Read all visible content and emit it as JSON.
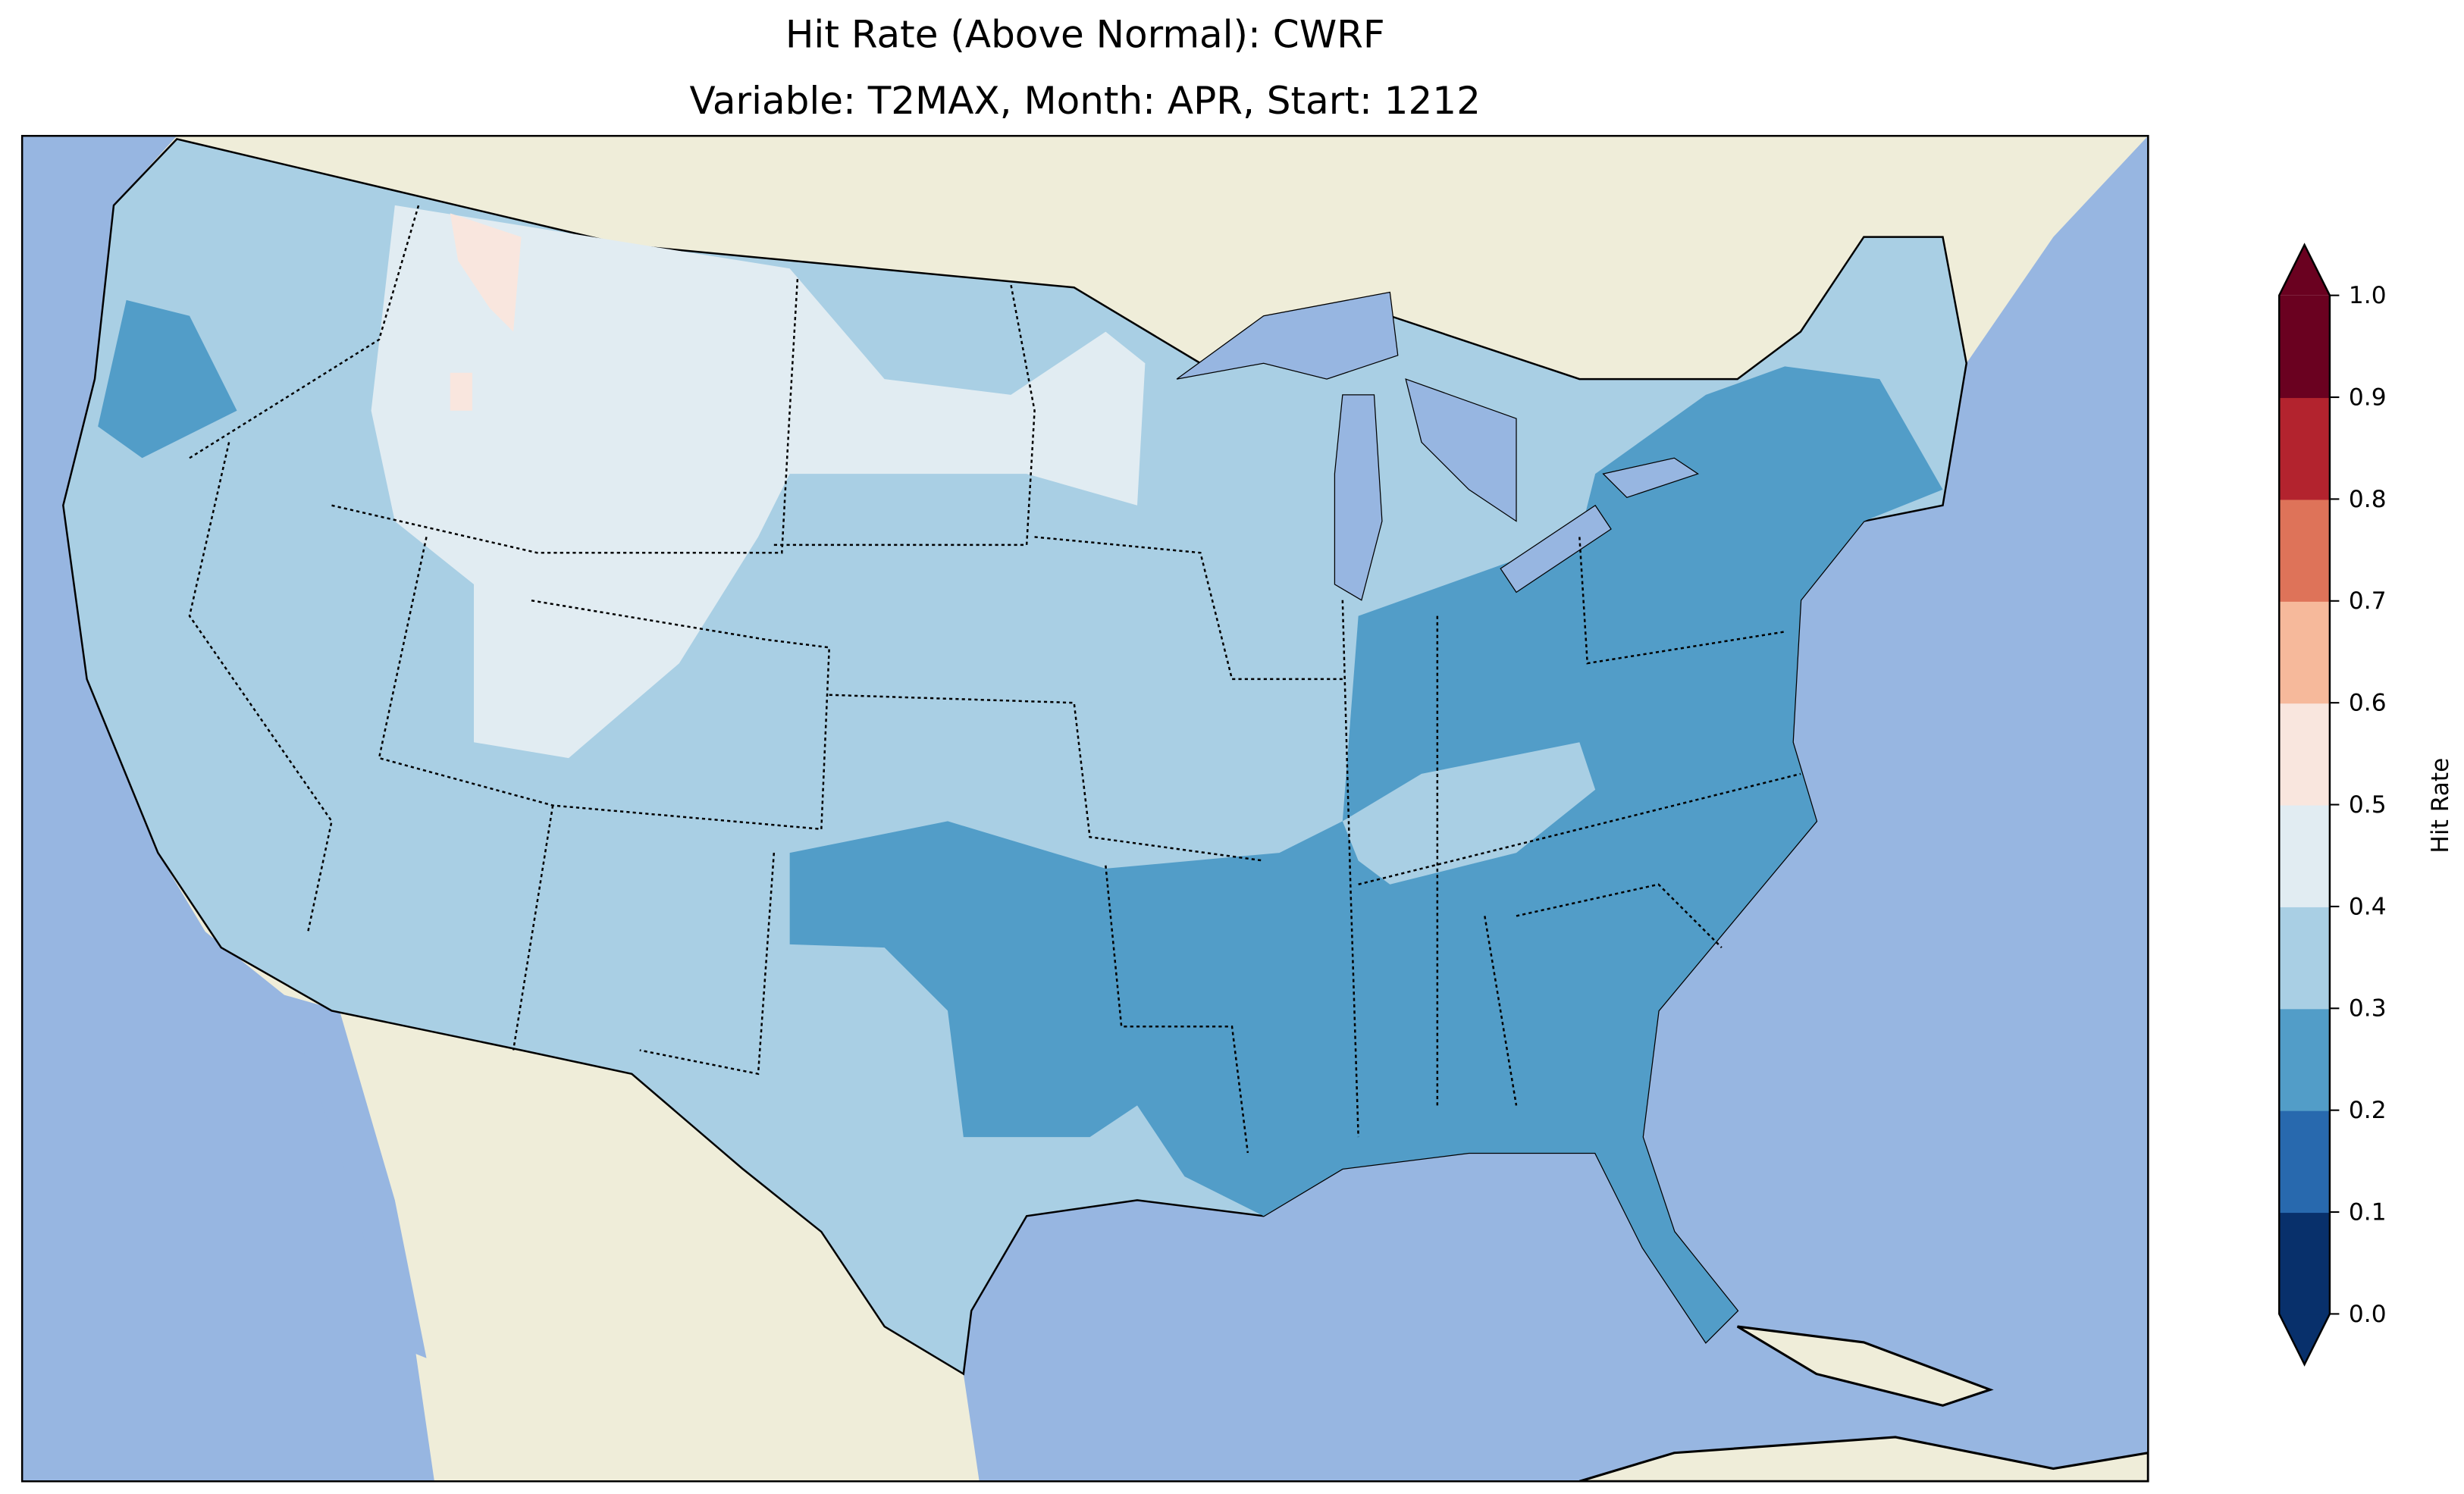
{
  "title": {
    "line1": "Hit Rate (Above Normal): CWRF",
    "line2": "Variable: T2MAX, Month: APR, Start: 1212"
  },
  "colorbar": {
    "label": "Hit Rate",
    "ticks": [
      "0.0",
      "0.1",
      "0.2",
      "0.3",
      "0.4",
      "0.5",
      "0.6",
      "0.7",
      "0.8",
      "0.9",
      "1.0"
    ],
    "colors": [
      "#08306b",
      "#2869ae",
      "#529dc8",
      "#a9cfe4",
      "#e1ecf2",
      "#f9e6de",
      "#f6b99b",
      "#de7359",
      "#b3232e",
      "#6a0120"
    ],
    "extend": "both"
  },
  "map": {
    "ocean_color": "#97b6e1",
    "land_color": "#efedd9",
    "dominant_values": {
      "northwest_plains": "0.4-0.5",
      "west_central": "0.3-0.4",
      "southeast_east": "0.2-0.3",
      "idaho_montana_patch": "0.5-0.6"
    }
  }
}
